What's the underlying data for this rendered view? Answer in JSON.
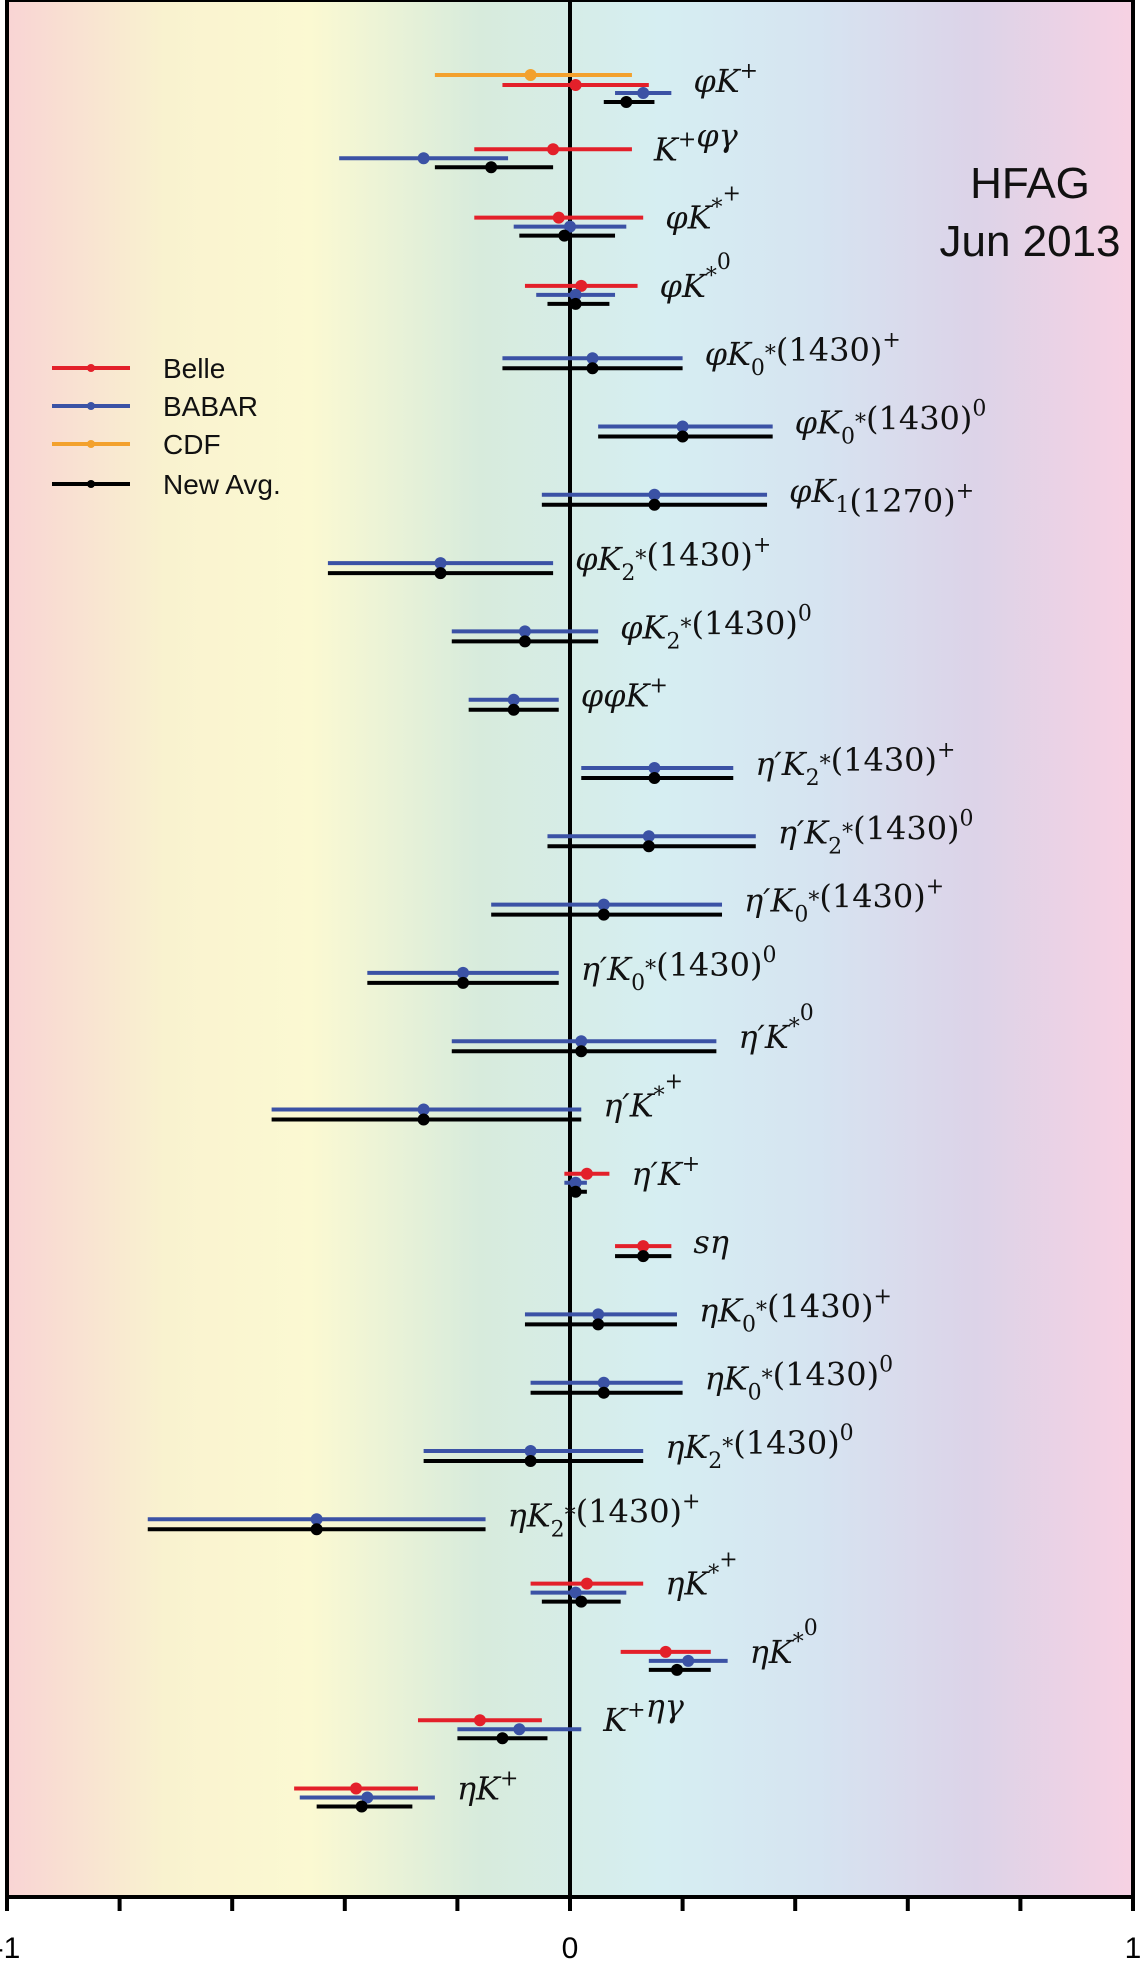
{
  "colors": {
    "Belle": "#e3202a",
    "BABAR": "#3b52a5",
    "CDF": "#f3a12d",
    "New Avg.": "#000000",
    "background_gradient": [
      "#f9d4d4",
      "#f9f2cf",
      "#fbf9d2",
      "#d7ebdc",
      "#d6eef2",
      "#d6e4f1",
      "#dcd3e8",
      "#f7d2e3"
    ]
  },
  "stamp": {
    "line1": "HFAG",
    "line2": "Jun 2013"
  },
  "legend": {
    "placement": "left-upper",
    "entries": [
      {
        "label": "Belle",
        "series": "Belle"
      },
      {
        "label": "BABAR",
        "series": "BABAR"
      },
      {
        "label": "CDF",
        "series": "CDF"
      },
      {
        "label": "New Avg.",
        "series": "New Avg."
      }
    ]
  },
  "chart_data": {
    "type": "scatter",
    "subtype": "horizontal error bars",
    "title": "",
    "xlabel": "",
    "ylabel": "",
    "xlim": [
      -1,
      1
    ],
    "x_tick_labels": [
      "-1",
      "0",
      "1"
    ],
    "x_ticks": [
      -1,
      -0.8,
      -0.6,
      -0.4,
      -0.2,
      0,
      0.2,
      0.4,
      0.6,
      0.8,
      1
    ],
    "grid": false,
    "reference_line": 0,
    "series": [
      "Belle",
      "BABAR",
      "CDF",
      "New Avg."
    ],
    "decays": [
      {
        "label": "φK⁺",
        "measurements": [
          {
            "exp": "CDF",
            "value": -0.07,
            "err_lo": -0.24,
            "err_hi": 0.11
          },
          {
            "exp": "Belle",
            "value": 0.01,
            "err_lo": -0.12,
            "err_hi": 0.14
          },
          {
            "exp": "BABAR",
            "value": 0.13,
            "err_lo": 0.08,
            "err_hi": 0.18
          },
          {
            "exp": "New Avg.",
            "value": 0.1,
            "err_lo": 0.06,
            "err_hi": 0.15
          }
        ]
      },
      {
        "label": "K⁺φγ",
        "measurements": [
          {
            "exp": "Belle",
            "value": -0.03,
            "err_lo": -0.17,
            "err_hi": 0.11
          },
          {
            "exp": "BABAR",
            "value": -0.26,
            "err_lo": -0.41,
            "err_hi": -0.11
          },
          {
            "exp": "New Avg.",
            "value": -0.14,
            "err_lo": -0.24,
            "err_hi": -0.03
          }
        ]
      },
      {
        "label": "φK*⁺",
        "measurements": [
          {
            "exp": "Belle",
            "value": -0.02,
            "err_lo": -0.17,
            "err_hi": 0.13
          },
          {
            "exp": "BABAR",
            "value": 0.0,
            "err_lo": -0.1,
            "err_hi": 0.1
          },
          {
            "exp": "New Avg.",
            "value": -0.01,
            "err_lo": -0.09,
            "err_hi": 0.08
          }
        ]
      },
      {
        "label": "φK*⁰",
        "measurements": [
          {
            "exp": "Belle",
            "value": 0.02,
            "err_lo": -0.08,
            "err_hi": 0.12
          },
          {
            "exp": "BABAR",
            "value": 0.01,
            "err_lo": -0.06,
            "err_hi": 0.08
          },
          {
            "exp": "New Avg.",
            "value": 0.01,
            "err_lo": -0.04,
            "err_hi": 0.07
          }
        ]
      },
      {
        "label": "φK₀*(1430)⁺",
        "measurements": [
          {
            "exp": "BABAR",
            "value": 0.04,
            "err_lo": -0.12,
            "err_hi": 0.2
          },
          {
            "exp": "New Avg.",
            "value": 0.04,
            "err_lo": -0.12,
            "err_hi": 0.2
          }
        ]
      },
      {
        "label": "φK₀*(1430)⁰",
        "measurements": [
          {
            "exp": "BABAR",
            "value": 0.2,
            "err_lo": 0.05,
            "err_hi": 0.36
          },
          {
            "exp": "New Avg.",
            "value": 0.2,
            "err_lo": 0.05,
            "err_hi": 0.36
          }
        ]
      },
      {
        "label": "φK₁(1270)⁺",
        "measurements": [
          {
            "exp": "BABAR",
            "value": 0.15,
            "err_lo": -0.05,
            "err_hi": 0.35
          },
          {
            "exp": "New Avg.",
            "value": 0.15,
            "err_lo": -0.05,
            "err_hi": 0.35
          }
        ]
      },
      {
        "label": "φK₂*(1430)⁺",
        "measurements": [
          {
            "exp": "BABAR",
            "value": -0.23,
            "err_lo": -0.43,
            "err_hi": -0.03
          },
          {
            "exp": "New Avg.",
            "value": -0.23,
            "err_lo": -0.43,
            "err_hi": -0.03
          }
        ]
      },
      {
        "label": "φK₂*(1430)⁰",
        "measurements": [
          {
            "exp": "BABAR",
            "value": -0.08,
            "err_lo": -0.21,
            "err_hi": 0.05
          },
          {
            "exp": "New Avg.",
            "value": -0.08,
            "err_lo": -0.21,
            "err_hi": 0.05
          }
        ]
      },
      {
        "label": "φφK⁺",
        "measurements": [
          {
            "exp": "BABAR",
            "value": -0.1,
            "err_lo": -0.18,
            "err_hi": -0.02
          },
          {
            "exp": "New Avg.",
            "value": -0.1,
            "err_lo": -0.18,
            "err_hi": -0.02
          }
        ]
      },
      {
        "label": "η′K₂*(1430)⁺",
        "measurements": [
          {
            "exp": "BABAR",
            "value": 0.15,
            "err_lo": 0.02,
            "err_hi": 0.29
          },
          {
            "exp": "New Avg.",
            "value": 0.15,
            "err_lo": 0.02,
            "err_hi": 0.29
          }
        ]
      },
      {
        "label": "η′K₂*(1430)⁰",
        "measurements": [
          {
            "exp": "BABAR",
            "value": 0.14,
            "err_lo": -0.04,
            "err_hi": 0.33
          },
          {
            "exp": "New Avg.",
            "value": 0.14,
            "err_lo": -0.04,
            "err_hi": 0.33
          }
        ]
      },
      {
        "label": "η′K₀*(1430)⁺",
        "measurements": [
          {
            "exp": "BABAR",
            "value": 0.06,
            "err_lo": -0.14,
            "err_hi": 0.27
          },
          {
            "exp": "New Avg.",
            "value": 0.06,
            "err_lo": -0.14,
            "err_hi": 0.27
          }
        ]
      },
      {
        "label": "η′K₀*(1430)⁰",
        "measurements": [
          {
            "exp": "BABAR",
            "value": -0.19,
            "err_lo": -0.36,
            "err_hi": -0.02
          },
          {
            "exp": "New Avg.",
            "value": -0.19,
            "err_lo": -0.36,
            "err_hi": -0.02
          }
        ]
      },
      {
        "label": "η′K*⁰",
        "measurements": [
          {
            "exp": "BABAR",
            "value": 0.02,
            "err_lo": -0.21,
            "err_hi": 0.26
          },
          {
            "exp": "New Avg.",
            "value": 0.02,
            "err_lo": -0.21,
            "err_hi": 0.26
          }
        ]
      },
      {
        "label": "η′K*⁺",
        "measurements": [
          {
            "exp": "BABAR",
            "value": -0.26,
            "err_lo": -0.53,
            "err_hi": 0.02
          },
          {
            "exp": "New Avg.",
            "value": -0.26,
            "err_lo": -0.53,
            "err_hi": 0.02
          }
        ]
      },
      {
        "label": "η′K⁺",
        "measurements": [
          {
            "exp": "Belle",
            "value": 0.03,
            "err_lo": -0.01,
            "err_hi": 0.07
          },
          {
            "exp": "BABAR",
            "value": 0.01,
            "err_lo": -0.01,
            "err_hi": 0.03
          },
          {
            "exp": "New Avg.",
            "value": 0.01,
            "err_lo": 0.0,
            "err_hi": 0.03
          }
        ]
      },
      {
        "label": "sη",
        "measurements": [
          {
            "exp": "Belle",
            "value": 0.13,
            "err_lo": 0.08,
            "err_hi": 0.18
          },
          {
            "exp": "New Avg.",
            "value": 0.13,
            "err_lo": 0.08,
            "err_hi": 0.18
          }
        ]
      },
      {
        "label": "ηK₀*(1430)⁺",
        "measurements": [
          {
            "exp": "BABAR",
            "value": 0.05,
            "err_lo": -0.08,
            "err_hi": 0.19
          },
          {
            "exp": "New Avg.",
            "value": 0.05,
            "err_lo": -0.08,
            "err_hi": 0.19
          }
        ]
      },
      {
        "label": "ηK₀*(1430)⁰",
        "measurements": [
          {
            "exp": "BABAR",
            "value": 0.06,
            "err_lo": -0.07,
            "err_hi": 0.2
          },
          {
            "exp": "New Avg.",
            "value": 0.06,
            "err_lo": -0.07,
            "err_hi": 0.2
          }
        ]
      },
      {
        "label": "ηK₂*(1430)⁰",
        "measurements": [
          {
            "exp": "BABAR",
            "value": -0.07,
            "err_lo": -0.26,
            "err_hi": 0.13
          },
          {
            "exp": "New Avg.",
            "value": -0.07,
            "err_lo": -0.26,
            "err_hi": 0.13
          }
        ]
      },
      {
        "label": "ηK₂*(1430)⁺",
        "measurements": [
          {
            "exp": "BABAR",
            "value": -0.45,
            "err_lo": -0.75,
            "err_hi": -0.15
          },
          {
            "exp": "New Avg.",
            "value": -0.45,
            "err_lo": -0.75,
            "err_hi": -0.15
          }
        ]
      },
      {
        "label": "ηK*⁺",
        "measurements": [
          {
            "exp": "Belle",
            "value": 0.03,
            "err_lo": -0.07,
            "err_hi": 0.13
          },
          {
            "exp": "BABAR",
            "value": 0.01,
            "err_lo": -0.07,
            "err_hi": 0.1
          },
          {
            "exp": "New Avg.",
            "value": 0.02,
            "err_lo": -0.05,
            "err_hi": 0.09
          }
        ]
      },
      {
        "label": "ηK*⁰",
        "measurements": [
          {
            "exp": "Belle",
            "value": 0.17,
            "err_lo": 0.09,
            "err_hi": 0.25
          },
          {
            "exp": "BABAR",
            "value": 0.21,
            "err_lo": 0.14,
            "err_hi": 0.28
          },
          {
            "exp": "New Avg.",
            "value": 0.19,
            "err_lo": 0.14,
            "err_hi": 0.25
          }
        ]
      },
      {
        "label": "K⁺ηγ",
        "measurements": [
          {
            "exp": "Belle",
            "value": -0.16,
            "err_lo": -0.27,
            "err_hi": -0.05
          },
          {
            "exp": "BABAR",
            "value": -0.09,
            "err_lo": -0.2,
            "err_hi": 0.02
          },
          {
            "exp": "New Avg.",
            "value": -0.12,
            "err_lo": -0.2,
            "err_hi": -0.04
          }
        ]
      },
      {
        "label": "ηK⁺",
        "measurements": [
          {
            "exp": "Belle",
            "value": -0.38,
            "err_lo": -0.49,
            "err_hi": -0.27
          },
          {
            "exp": "BABAR",
            "value": -0.36,
            "err_lo": -0.48,
            "err_hi": -0.24
          },
          {
            "exp": "New Avg.",
            "value": -0.37,
            "err_lo": -0.45,
            "err_hi": -0.28
          }
        ]
      }
    ]
  }
}
